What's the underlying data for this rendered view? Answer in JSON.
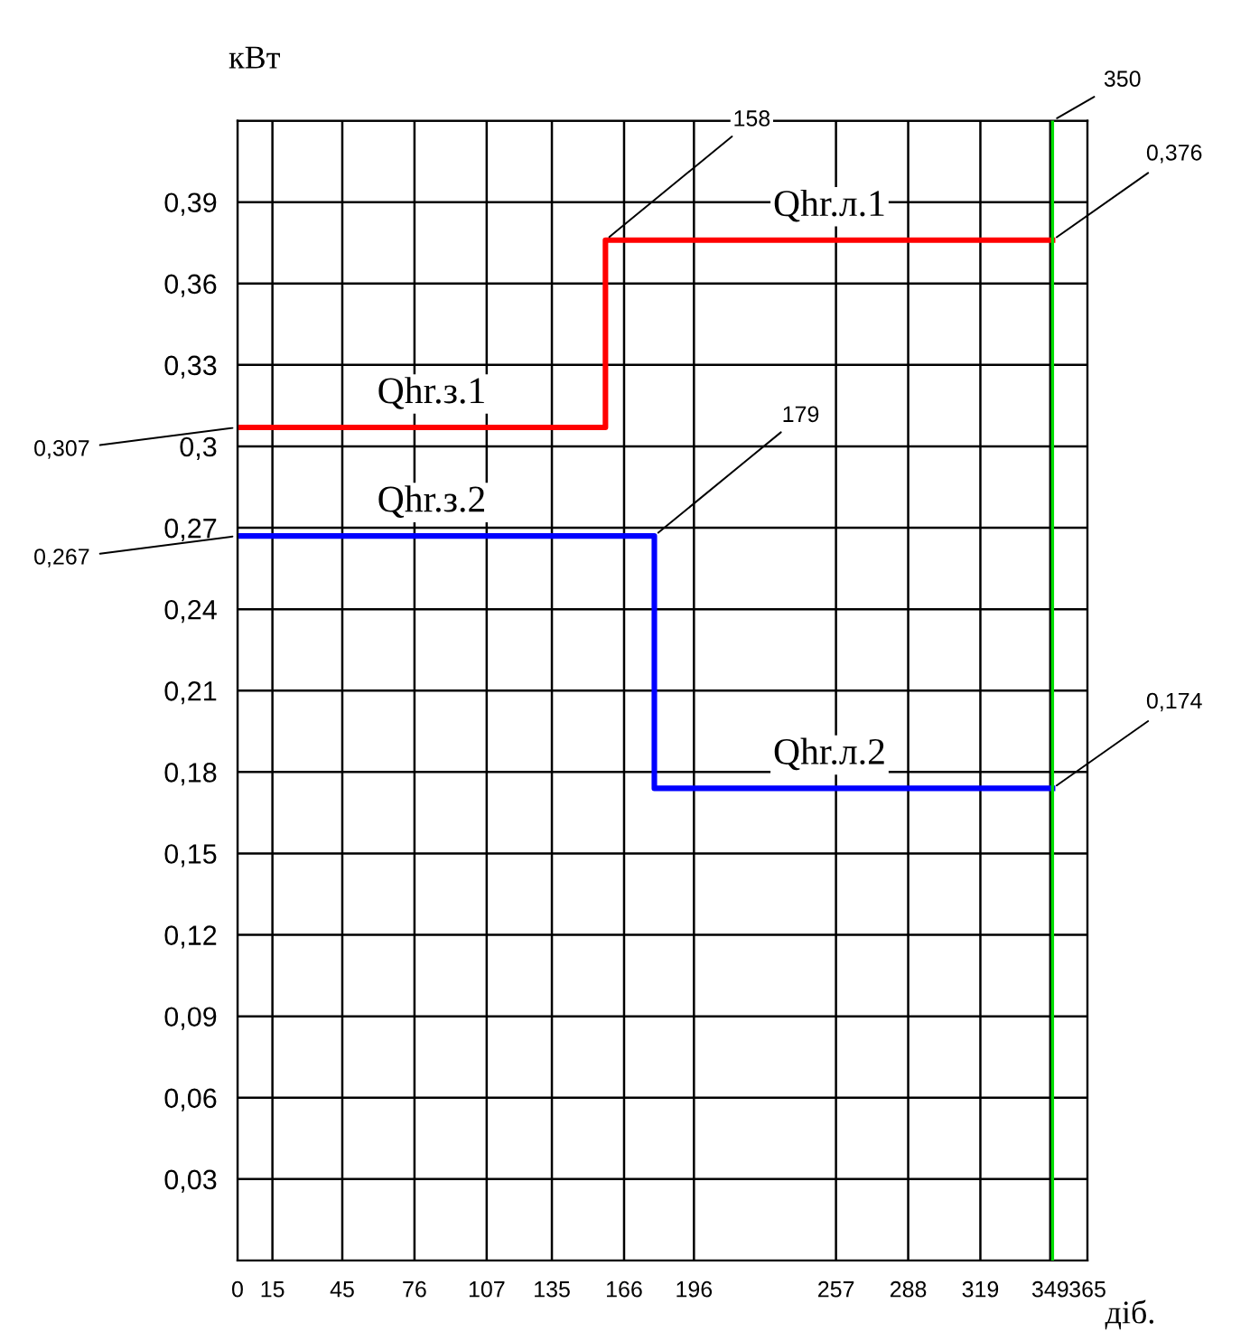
{
  "chart_data": {
    "type": "step",
    "ylabel": "кВт",
    "xlabel": "діб.",
    "xlim": [
      0,
      365
    ],
    "ylim": [
      0,
      0.42
    ],
    "xticks": [
      0,
      15,
      45,
      76,
      107,
      135,
      166,
      196,
      257,
      288,
      319,
      349,
      365
    ],
    "yticks": [
      {
        "value": 0.03,
        "label": "0,03"
      },
      {
        "value": 0.06,
        "label": "0,06"
      },
      {
        "value": 0.09,
        "label": "0,09"
      },
      {
        "value": 0.12,
        "label": "0,12"
      },
      {
        "value": 0.15,
        "label": "0,15"
      },
      {
        "value": 0.18,
        "label": "0,18"
      },
      {
        "value": 0.21,
        "label": "0,21"
      },
      {
        "value": 0.24,
        "label": "0,24"
      },
      {
        "value": 0.27,
        "label": "0,27"
      },
      {
        "value": 0.3,
        "label": "0,3"
      },
      {
        "value": 0.33,
        "label": "0,33"
      },
      {
        "value": 0.36,
        "label": "0,36"
      },
      {
        "value": 0.39,
        "label": "0,39"
      },
      {
        "value": 0.42,
        "label": null
      }
    ],
    "grid": true,
    "marker": "none",
    "line_style": "solid",
    "series": [
      {
        "color": "#ff0000",
        "x": [
          0,
          158,
          350
        ],
        "values": [
          0.307,
          0.376,
          0.376
        ]
      },
      {
        "color": "#0000ff",
        "x": [
          0,
          179,
          350
        ],
        "values": [
          0.267,
          0.174,
          0.174
        ]
      }
    ],
    "ref_lines": [
      {
        "axis": "x",
        "value": 350,
        "label": "350",
        "color": "#00dd00"
      }
    ],
    "annotations": [
      {
        "text": "Qhr.з.1",
        "x": 60,
        "y": 0.307
      },
      {
        "text": "Qhr.л.1",
        "x": 230,
        "y": 0.376
      },
      {
        "text": "Qhr.з.2",
        "x": 60,
        "y": 0.267
      },
      {
        "text": "Qhr.л.2",
        "x": 230,
        "y": 0.174
      },
      {
        "text": "0,307",
        "x": 0,
        "y": 0.307
      },
      {
        "text": "0,267",
        "x": 0,
        "y": 0.267
      },
      {
        "text": "0,376",
        "x": 350,
        "y": 0.376
      },
      {
        "text": "0,174",
        "x": 350,
        "y": 0.174
      },
      {
        "text": "158",
        "x": 158,
        "y": 0.376
      },
      {
        "text": "179",
        "x": 179,
        "y": 0.267
      }
    ]
  }
}
